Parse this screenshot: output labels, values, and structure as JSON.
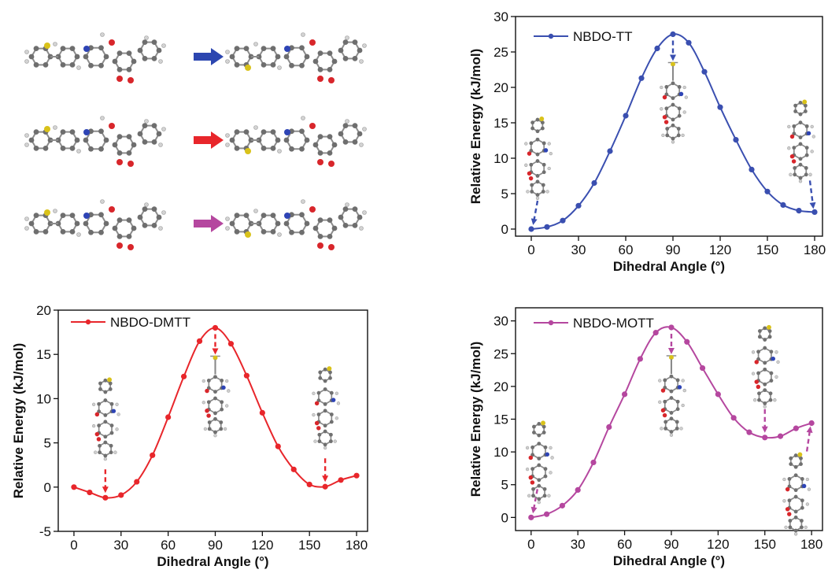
{
  "chart_data": [
    {
      "id": "tt",
      "type": "line",
      "color": "#3a4fb0",
      "xlabel": "Dihedral Angle (°)",
      "ylabel": "Relative Energy (kJ/mol)",
      "xlim": [
        -10,
        185
      ],
      "ylim": [
        -1,
        30
      ],
      "xticks": [
        0,
        30,
        60,
        90,
        120,
        150,
        180
      ],
      "yticks": [
        0,
        5,
        10,
        15,
        20,
        25,
        30
      ],
      "legend_position": "top-left",
      "series": [
        {
          "name": "NBDO-TT",
          "x": [
            0,
            10,
            20,
            30,
            40,
            50,
            60,
            70,
            80,
            90,
            100,
            110,
            120,
            130,
            140,
            150,
            160,
            170,
            180
          ],
          "y": [
            0,
            0.3,
            1.2,
            3.3,
            6.5,
            11.0,
            16.0,
            21.3,
            25.5,
            27.5,
            26.3,
            22.2,
            17.2,
            12.6,
            8.4,
            5.3,
            3.4,
            2.6,
            2.4
          ]
        }
      ],
      "markers_at_x": [
        0,
        90,
        180
      ]
    },
    {
      "id": "dmtt",
      "type": "line",
      "color": "#e8262b",
      "xlabel": "Dihedral Angle (°)",
      "ylabel": "Relative Energy (kJ/mol)",
      "xlim": [
        -10,
        187
      ],
      "ylim": [
        -5,
        20
      ],
      "xticks": [
        0,
        30,
        60,
        90,
        120,
        150,
        180
      ],
      "yticks": [
        -5,
        0,
        5,
        10,
        15,
        20
      ],
      "legend_position": "top-left",
      "series": [
        {
          "name": "NBDO-DMTT",
          "x": [
            0,
            10,
            20,
            30,
            40,
            50,
            60,
            70,
            80,
            90,
            100,
            110,
            120,
            130,
            140,
            150,
            160,
            170,
            180
          ],
          "y": [
            0,
            -0.6,
            -1.2,
            -0.9,
            0.6,
            3.6,
            7.9,
            12.5,
            16.5,
            18.0,
            16.2,
            12.6,
            8.4,
            4.6,
            2.0,
            0.3,
            0.05,
            0.8,
            1.3
          ]
        }
      ],
      "markers_at_x": [
        20,
        90,
        160
      ]
    },
    {
      "id": "mott",
      "type": "line",
      "color": "#b5479f",
      "xlabel": "Dihedral Angle (°)",
      "ylabel": "Relative Energy (kJ/mol)",
      "xlim": [
        -10,
        187
      ],
      "ylim": [
        -2,
        32
      ],
      "xticks": [
        0,
        30,
        60,
        90,
        120,
        150,
        180
      ],
      "yticks": [
        0,
        5,
        10,
        15,
        20,
        25,
        30
      ],
      "legend_position": "top-left",
      "series": [
        {
          "name": "NBDO-MOTT",
          "x": [
            0,
            10,
            20,
            30,
            40,
            50,
            60,
            70,
            80,
            90,
            100,
            110,
            120,
            130,
            140,
            150,
            160,
            170,
            180
          ],
          "y": [
            0,
            0.5,
            1.8,
            4.2,
            8.4,
            13.8,
            18.8,
            24.2,
            28.2,
            29.0,
            26.8,
            22.8,
            18.8,
            15.2,
            13.0,
            12.2,
            12.4,
            13.6,
            14.4
          ]
        }
      ],
      "markers_at_x": [
        0,
        90,
        150,
        180
      ]
    }
  ],
  "molecule_diagrams": [
    {
      "row": 1,
      "arrow_color": "#2c46b0"
    },
    {
      "row": 2,
      "arrow_color": "#e8262b"
    },
    {
      "row": 3,
      "arrow_color": "#b5479f"
    }
  ]
}
